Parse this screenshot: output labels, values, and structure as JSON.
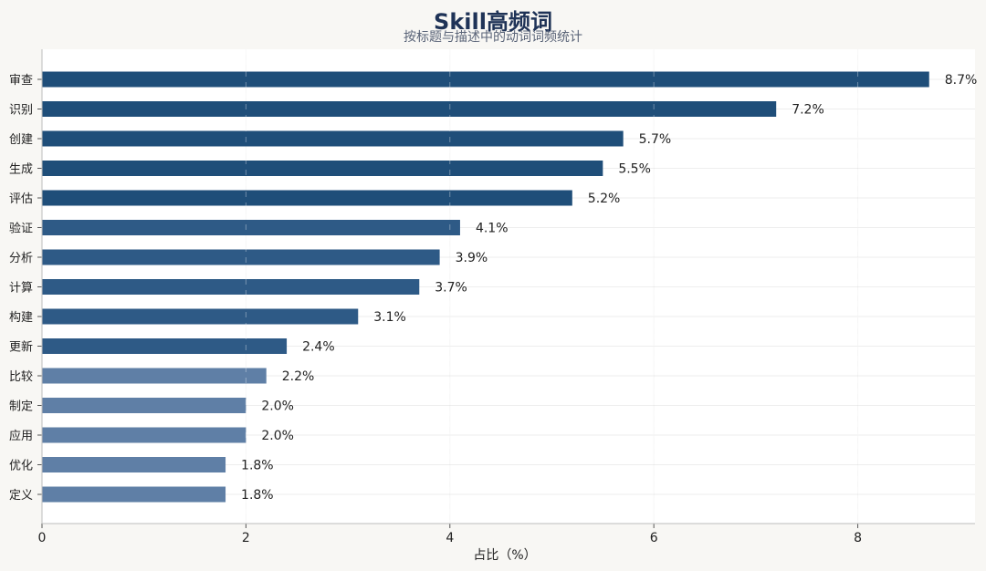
{
  "title": "Skill高频词",
  "subtitle": "按标题与描述中的动词词频统计",
  "chart_data": {
    "type": "bar",
    "orientation": "horizontal",
    "title": "Skill高频词",
    "subtitle": "按标题与描述中的动词词频统计",
    "xlabel": "占比（%）",
    "ylabel": "",
    "xlim": [
      0,
      9.15
    ],
    "xticks": [
      0,
      2,
      4,
      6,
      8
    ],
    "grid": true,
    "categories": [
      "审查",
      "识别",
      "创建",
      "生成",
      "评估",
      "验证",
      "分析",
      "计算",
      "构建",
      "更新",
      "比较",
      "制定",
      "应用",
      "优化",
      "定义"
    ],
    "values": [
      8.7,
      7.2,
      5.7,
      5.5,
      5.2,
      4.1,
      3.9,
      3.7,
      3.1,
      2.4,
      2.2,
      2.0,
      2.0,
      1.8,
      1.8
    ],
    "value_labels": [
      "8.7%",
      "7.2%",
      "5.7%",
      "5.5%",
      "5.2%",
      "4.1%",
      "3.9%",
      "3.7%",
      "3.1%",
      "2.4%",
      "2.2%",
      "2.0%",
      "2.0%",
      "1.8%",
      "1.8%"
    ],
    "colors": {
      "dark": "#1f4e79",
      "mid": "#2e5a86",
      "light": "#5f7fa6",
      "plot_bg": "#ffffff",
      "page_bg": "#f8f7f4"
    }
  }
}
